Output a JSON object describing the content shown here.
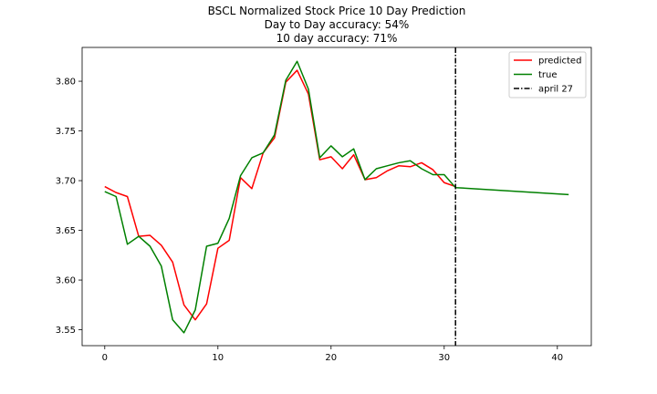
{
  "chart_data": {
    "type": "line",
    "title_lines": [
      "BSCL Normalized Stock Price 10 Day Prediction",
      "Day to Day accuracy: 54%",
      "10 day accuracy: 71%"
    ],
    "xlabel": "",
    "ylabel": "",
    "xlim": [
      -2,
      43
    ],
    "ylim": [
      3.534,
      3.834
    ],
    "xticks": [
      0,
      10,
      20,
      30,
      40
    ],
    "yticks": [
      3.55,
      3.6,
      3.65,
      3.7,
      3.75,
      3.8
    ],
    "ytick_labels": [
      "3.55",
      "3.60",
      "3.65",
      "3.70",
      "3.75",
      "3.80"
    ],
    "grid": false,
    "legend_position": "upper right",
    "series": [
      {
        "name": "predicted",
        "color": "#ff0000",
        "x": [
          0,
          1,
          2,
          3,
          4,
          5,
          6,
          7,
          8,
          9,
          10,
          11,
          12,
          13,
          14,
          15,
          16,
          17,
          18,
          19,
          20,
          21,
          22,
          23,
          24,
          25,
          26,
          27,
          28,
          29,
          30,
          31
        ],
        "y": [
          3.694,
          3.688,
          3.684,
          3.644,
          3.645,
          3.635,
          3.618,
          3.575,
          3.56,
          3.576,
          3.632,
          3.64,
          3.703,
          3.692,
          3.728,
          3.743,
          3.799,
          3.811,
          3.787,
          3.721,
          3.724,
          3.712,
          3.726,
          3.701,
          3.703,
          3.71,
          3.715,
          3.714,
          3.718,
          3.711,
          3.698,
          3.694
        ]
      },
      {
        "name": "true",
        "color": "#008000",
        "x": [
          0,
          1,
          2,
          3,
          4,
          5,
          6,
          7,
          8,
          9,
          10,
          11,
          12,
          13,
          14,
          15,
          16,
          17,
          18,
          19,
          20,
          21,
          22,
          23,
          24,
          25,
          26,
          27,
          28,
          29,
          30,
          31,
          41
        ],
        "y": [
          3.689,
          3.684,
          3.636,
          3.644,
          3.634,
          3.614,
          3.56,
          3.547,
          3.57,
          3.634,
          3.637,
          3.662,
          3.705,
          3.723,
          3.728,
          3.746,
          3.801,
          3.82,
          3.792,
          3.723,
          3.735,
          3.724,
          3.732,
          3.701,
          3.712,
          3.715,
          3.718,
          3.72,
          3.712,
          3.706,
          3.706,
          3.693,
          3.686
        ]
      }
    ],
    "vline": {
      "name": "april 27",
      "x": 31,
      "color": "#000000",
      "style": "dash-dot"
    }
  }
}
